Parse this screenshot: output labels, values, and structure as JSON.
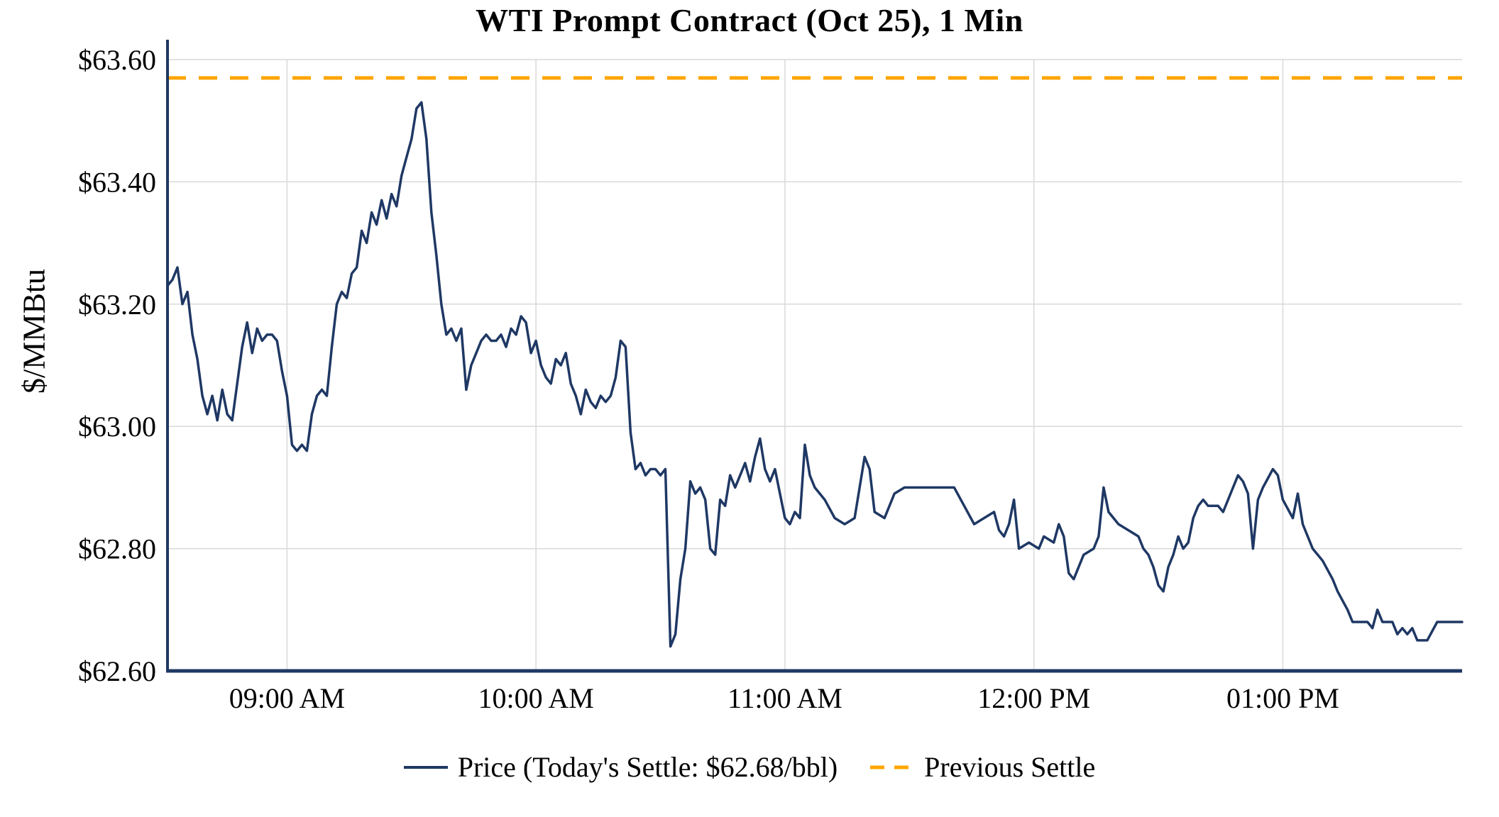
{
  "title": "WTI Prompt Contract (Oct 25), 1 Min",
  "colors": {
    "price": "#1f3864",
    "settle": "#FFA500",
    "grid": "#d9d9d9",
    "axis": "#1f3864"
  },
  "legend": {
    "price_label": "Price (Today's Settle: $62.68/bbl)",
    "settle_label": "Previous Settle"
  },
  "chart_data": {
    "type": "line",
    "title": "WTI Prompt Contract (Oct 25), 1 Min",
    "xlabel": "",
    "ylabel": "$/MMBtu",
    "ylim": [
      62.6,
      63.6
    ],
    "xlim_hours": [
      8.52,
      13.72
    ],
    "grid": true,
    "legend_position": "bottom",
    "previous_settle": 63.57,
    "todays_settle_label": "$62.68/bbl",
    "y_ticks": [
      {
        "value": 62.6,
        "label": "$62.60"
      },
      {
        "value": 62.8,
        "label": "$62.80"
      },
      {
        "value": 63.0,
        "label": "$63.00"
      },
      {
        "value": 63.2,
        "label": "$63.20"
      },
      {
        "value": 63.4,
        "label": "$63.40"
      },
      {
        "value": 63.6,
        "label": "$63.60"
      }
    ],
    "x_ticks": [
      {
        "hour": 9,
        "label": "09:00 AM"
      },
      {
        "hour": 10,
        "label": "10:00 AM"
      },
      {
        "hour": 11,
        "label": "11:00 AM"
      },
      {
        "hour": 12,
        "label": "12:00 PM"
      },
      {
        "hour": 13,
        "label": "01:00 PM"
      }
    ],
    "series": [
      {
        "name": "Price (Today's Settle: $62.68/bbl)",
        "style": "solid",
        "points": [
          [
            8.52,
            63.23
          ],
          [
            8.54,
            63.24
          ],
          [
            8.56,
            63.26
          ],
          [
            8.58,
            63.2
          ],
          [
            8.6,
            63.22
          ],
          [
            8.62,
            63.15
          ],
          [
            8.64,
            63.11
          ],
          [
            8.66,
            63.05
          ],
          [
            8.68,
            63.02
          ],
          [
            8.7,
            63.05
          ],
          [
            8.72,
            63.01
          ],
          [
            8.74,
            63.06
          ],
          [
            8.76,
            63.02
          ],
          [
            8.78,
            63.01
          ],
          [
            8.8,
            63.07
          ],
          [
            8.82,
            63.13
          ],
          [
            8.84,
            63.17
          ],
          [
            8.86,
            63.12
          ],
          [
            8.88,
            63.16
          ],
          [
            8.9,
            63.14
          ],
          [
            8.92,
            63.15
          ],
          [
            8.94,
            63.15
          ],
          [
            8.96,
            63.14
          ],
          [
            8.98,
            63.09
          ],
          [
            9.0,
            63.05
          ],
          [
            9.02,
            62.97
          ],
          [
            9.04,
            62.96
          ],
          [
            9.06,
            62.97
          ],
          [
            9.08,
            62.96
          ],
          [
            9.1,
            63.02
          ],
          [
            9.12,
            63.05
          ],
          [
            9.14,
            63.06
          ],
          [
            9.16,
            63.05
          ],
          [
            9.18,
            63.13
          ],
          [
            9.2,
            63.2
          ],
          [
            9.22,
            63.22
          ],
          [
            9.24,
            63.21
          ],
          [
            9.26,
            63.25
          ],
          [
            9.28,
            63.26
          ],
          [
            9.3,
            63.32
          ],
          [
            9.32,
            63.3
          ],
          [
            9.34,
            63.35
          ],
          [
            9.36,
            63.33
          ],
          [
            9.38,
            63.37
          ],
          [
            9.4,
            63.34
          ],
          [
            9.42,
            63.38
          ],
          [
            9.44,
            63.36
          ],
          [
            9.46,
            63.41
          ],
          [
            9.48,
            63.44
          ],
          [
            9.5,
            63.47
          ],
          [
            9.52,
            63.52
          ],
          [
            9.54,
            63.53
          ],
          [
            9.56,
            63.47
          ],
          [
            9.58,
            63.35
          ],
          [
            9.6,
            63.28
          ],
          [
            9.62,
            63.2
          ],
          [
            9.64,
            63.15
          ],
          [
            9.66,
            63.16
          ],
          [
            9.68,
            63.14
          ],
          [
            9.7,
            63.16
          ],
          [
            9.72,
            63.06
          ],
          [
            9.74,
            63.1
          ],
          [
            9.76,
            63.12
          ],
          [
            9.78,
            63.14
          ],
          [
            9.8,
            63.15
          ],
          [
            9.82,
            63.14
          ],
          [
            9.84,
            63.14
          ],
          [
            9.86,
            63.15
          ],
          [
            9.88,
            63.13
          ],
          [
            9.9,
            63.16
          ],
          [
            9.92,
            63.15
          ],
          [
            9.94,
            63.18
          ],
          [
            9.96,
            63.17
          ],
          [
            9.98,
            63.12
          ],
          [
            10.0,
            63.14
          ],
          [
            10.02,
            63.1
          ],
          [
            10.04,
            63.08
          ],
          [
            10.06,
            63.07
          ],
          [
            10.08,
            63.11
          ],
          [
            10.1,
            63.1
          ],
          [
            10.12,
            63.12
          ],
          [
            10.14,
            63.07
          ],
          [
            10.16,
            63.05
          ],
          [
            10.18,
            63.02
          ],
          [
            10.2,
            63.06
          ],
          [
            10.22,
            63.04
          ],
          [
            10.24,
            63.03
          ],
          [
            10.26,
            63.05
          ],
          [
            10.28,
            63.04
          ],
          [
            10.3,
            63.05
          ],
          [
            10.32,
            63.08
          ],
          [
            10.34,
            63.14
          ],
          [
            10.36,
            63.13
          ],
          [
            10.38,
            62.99
          ],
          [
            10.4,
            62.93
          ],
          [
            10.42,
            62.94
          ],
          [
            10.44,
            62.92
          ],
          [
            10.46,
            62.93
          ],
          [
            10.48,
            62.93
          ],
          [
            10.5,
            62.92
          ],
          [
            10.52,
            62.93
          ],
          [
            10.54,
            62.64
          ],
          [
            10.56,
            62.66
          ],
          [
            10.58,
            62.75
          ],
          [
            10.6,
            62.8
          ],
          [
            10.62,
            62.91
          ],
          [
            10.64,
            62.89
          ],
          [
            10.66,
            62.9
          ],
          [
            10.68,
            62.88
          ],
          [
            10.7,
            62.8
          ],
          [
            10.72,
            62.79
          ],
          [
            10.74,
            62.88
          ],
          [
            10.76,
            62.87
          ],
          [
            10.78,
            62.92
          ],
          [
            10.8,
            62.9
          ],
          [
            10.82,
            62.92
          ],
          [
            10.84,
            62.94
          ],
          [
            10.86,
            62.91
          ],
          [
            10.88,
            62.95
          ],
          [
            10.9,
            62.98
          ],
          [
            10.92,
            62.93
          ],
          [
            10.94,
            62.91
          ],
          [
            10.96,
            62.93
          ],
          [
            10.98,
            62.89
          ],
          [
            11.0,
            62.85
          ],
          [
            11.02,
            62.84
          ],
          [
            11.04,
            62.86
          ],
          [
            11.06,
            62.85
          ],
          [
            11.08,
            62.97
          ],
          [
            11.1,
            62.92
          ],
          [
            11.12,
            62.9
          ],
          [
            11.14,
            62.89
          ],
          [
            11.16,
            62.88
          ],
          [
            11.2,
            62.85
          ],
          [
            11.24,
            62.84
          ],
          [
            11.28,
            62.85
          ],
          [
            11.32,
            62.95
          ],
          [
            11.34,
            62.93
          ],
          [
            11.36,
            62.86
          ],
          [
            11.4,
            62.85
          ],
          [
            11.44,
            62.89
          ],
          [
            11.48,
            62.9
          ],
          [
            11.55,
            62.9
          ],
          [
            11.62,
            62.9
          ],
          [
            11.68,
            62.9
          ],
          [
            11.72,
            62.87
          ],
          [
            11.76,
            62.84
          ],
          [
            11.8,
            62.85
          ],
          [
            11.84,
            62.86
          ],
          [
            11.86,
            62.83
          ],
          [
            11.88,
            62.82
          ],
          [
            11.9,
            62.84
          ],
          [
            11.92,
            62.88
          ],
          [
            11.94,
            62.8
          ],
          [
            11.98,
            62.81
          ],
          [
            12.02,
            62.8
          ],
          [
            12.04,
            62.82
          ],
          [
            12.08,
            62.81
          ],
          [
            12.1,
            62.84
          ],
          [
            12.12,
            62.82
          ],
          [
            12.14,
            62.76
          ],
          [
            12.16,
            62.75
          ],
          [
            12.2,
            62.79
          ],
          [
            12.24,
            62.8
          ],
          [
            12.26,
            62.82
          ],
          [
            12.28,
            62.9
          ],
          [
            12.3,
            62.86
          ],
          [
            12.34,
            62.84
          ],
          [
            12.38,
            62.83
          ],
          [
            12.42,
            62.82
          ],
          [
            12.44,
            62.8
          ],
          [
            12.46,
            62.79
          ],
          [
            12.48,
            62.77
          ],
          [
            12.5,
            62.74
          ],
          [
            12.52,
            62.73
          ],
          [
            12.54,
            62.77
          ],
          [
            12.56,
            62.79
          ],
          [
            12.58,
            62.82
          ],
          [
            12.6,
            62.8
          ],
          [
            12.62,
            62.81
          ],
          [
            12.64,
            62.85
          ],
          [
            12.66,
            62.87
          ],
          [
            12.68,
            62.88
          ],
          [
            12.7,
            62.87
          ],
          [
            12.74,
            62.87
          ],
          [
            12.76,
            62.86
          ],
          [
            12.8,
            62.9
          ],
          [
            12.82,
            62.92
          ],
          [
            12.84,
            62.91
          ],
          [
            12.86,
            62.89
          ],
          [
            12.88,
            62.8
          ],
          [
            12.9,
            62.88
          ],
          [
            12.92,
            62.9
          ],
          [
            12.96,
            62.93
          ],
          [
            12.98,
            62.92
          ],
          [
            13.0,
            62.88
          ],
          [
            13.04,
            62.85
          ],
          [
            13.06,
            62.89
          ],
          [
            13.08,
            62.84
          ],
          [
            13.12,
            62.8
          ],
          [
            13.14,
            62.79
          ],
          [
            13.16,
            62.78
          ],
          [
            13.2,
            62.75
          ],
          [
            13.22,
            62.73
          ],
          [
            13.26,
            62.7
          ],
          [
            13.28,
            62.68
          ],
          [
            13.32,
            62.68
          ],
          [
            13.34,
            62.68
          ],
          [
            13.36,
            62.67
          ],
          [
            13.38,
            62.7
          ],
          [
            13.4,
            62.68
          ],
          [
            13.44,
            62.68
          ],
          [
            13.46,
            62.66
          ],
          [
            13.48,
            62.67
          ],
          [
            13.5,
            62.66
          ],
          [
            13.52,
            62.67
          ],
          [
            13.54,
            62.65
          ],
          [
            13.58,
            62.65
          ],
          [
            13.62,
            62.68
          ],
          [
            13.66,
            62.68
          ],
          [
            13.72,
            62.68
          ]
        ]
      },
      {
        "name": "Previous Settle",
        "style": "dashed",
        "value": 63.57
      }
    ]
  }
}
